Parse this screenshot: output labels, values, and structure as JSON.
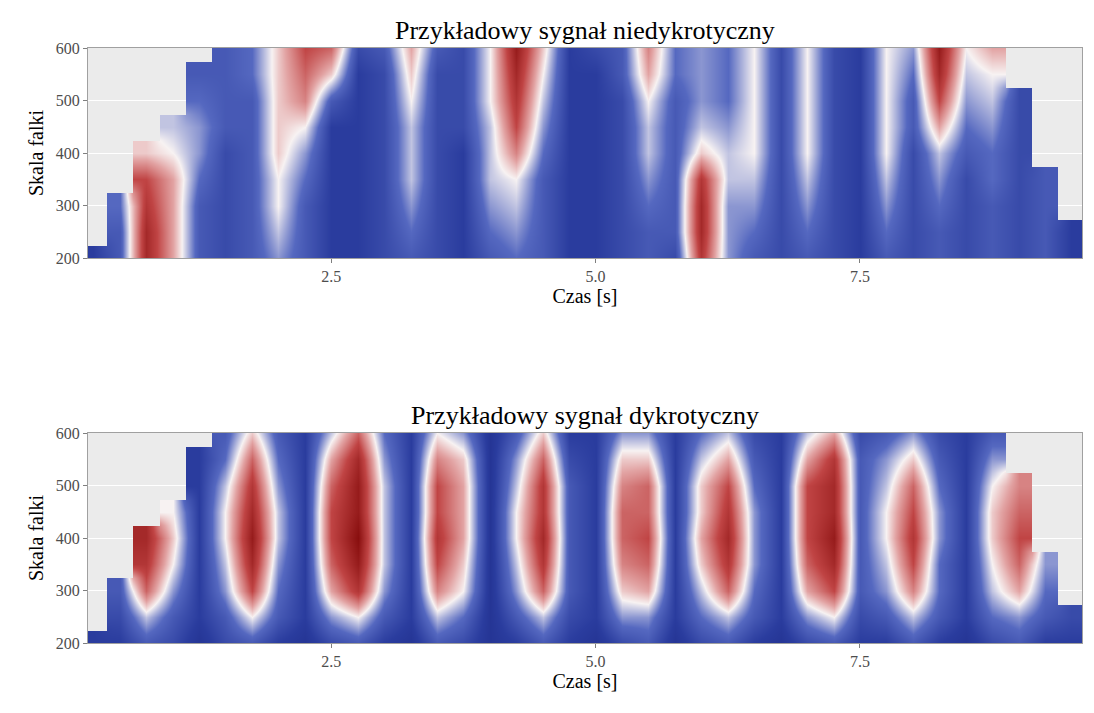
{
  "chart_data": [
    {
      "type": "heatmap",
      "title": "Przykładowy sygnał niedykrotyczny",
      "x_label": "Czas [s]",
      "y_label": "Skala falki",
      "x": [
        0.25,
        0.5,
        0.75,
        1.0,
        1.25,
        1.5,
        1.75,
        2.0,
        2.25,
        2.5,
        2.75,
        3.0,
        3.25,
        3.5,
        3.75,
        4.0,
        4.25,
        4.5,
        4.75,
        5.0,
        5.25,
        5.5,
        5.75,
        6.0,
        6.25,
        6.5,
        6.75,
        7.0,
        7.25,
        7.5,
        7.75,
        8.0,
        8.25,
        8.5,
        8.75,
        9.0,
        9.25,
        9.5
      ],
      "y": [
        200,
        250,
        300,
        350,
        400,
        450,
        500,
        550,
        600
      ],
      "z": [
        [
          0.2,
          0.3,
          0.85,
          0.6,
          0.3,
          0.25,
          0.3,
          0.4,
          0.3,
          0.2,
          0.2,
          0.25,
          0.3,
          0.25,
          0.2,
          0.3,
          0.35,
          0.3,
          0.2,
          0.2,
          0.25,
          0.3,
          0.25,
          0.8,
          0.4,
          0.3,
          0.25,
          0.3,
          0.25,
          0.2,
          0.3,
          0.25,
          0.3,
          0.25,
          0.3,
          0.25,
          0.3,
          0.2
        ],
        [
          null,
          0.3,
          0.85,
          0.6,
          0.3,
          0.25,
          0.3,
          0.45,
          0.3,
          0.2,
          0.2,
          0.25,
          0.35,
          0.25,
          0.2,
          0.35,
          0.4,
          0.3,
          0.2,
          0.2,
          0.25,
          0.3,
          0.3,
          0.85,
          0.4,
          0.35,
          0.25,
          0.35,
          0.25,
          0.2,
          0.35,
          0.25,
          0.3,
          0.25,
          0.3,
          0.25,
          0.3,
          0.2
        ],
        [
          null,
          0.35,
          0.8,
          0.6,
          0.3,
          0.25,
          0.3,
          0.5,
          0.3,
          0.2,
          0.2,
          0.25,
          0.4,
          0.25,
          0.2,
          0.4,
          0.45,
          0.3,
          0.2,
          0.2,
          0.25,
          0.35,
          0.3,
          0.85,
          0.4,
          0.4,
          0.25,
          0.4,
          0.25,
          0.2,
          0.4,
          0.25,
          0.35,
          0.25,
          0.3,
          0.25,
          0.3,
          null
        ],
        [
          null,
          null,
          0.75,
          0.6,
          0.35,
          0.25,
          0.3,
          0.5,
          0.35,
          0.2,
          0.2,
          0.25,
          0.45,
          0.25,
          0.2,
          0.45,
          0.5,
          0.3,
          0.2,
          0.2,
          0.25,
          0.4,
          0.3,
          0.8,
          0.45,
          0.45,
          0.25,
          0.45,
          0.25,
          0.2,
          0.45,
          0.25,
          0.4,
          0.25,
          0.35,
          0.25,
          0.3,
          null
        ],
        [
          null,
          null,
          0.55,
          0.5,
          0.4,
          0.25,
          0.3,
          0.55,
          0.4,
          0.2,
          0.2,
          0.25,
          0.45,
          0.25,
          0.2,
          0.45,
          0.65,
          0.35,
          0.2,
          0.2,
          0.25,
          0.45,
          0.3,
          0.55,
          0.45,
          0.5,
          0.25,
          0.5,
          0.25,
          0.2,
          0.5,
          0.25,
          0.45,
          0.3,
          0.35,
          0.25,
          null,
          null
        ],
        [
          null,
          null,
          null,
          0.45,
          0.4,
          0.3,
          0.3,
          0.55,
          0.5,
          0.2,
          0.2,
          0.25,
          0.45,
          0.25,
          0.25,
          0.45,
          0.75,
          0.4,
          0.2,
          0.2,
          0.25,
          0.45,
          0.3,
          0.45,
          0.4,
          0.5,
          0.25,
          0.5,
          0.25,
          0.2,
          0.5,
          0.3,
          0.6,
          0.35,
          0.4,
          0.25,
          null,
          null
        ],
        [
          null,
          null,
          null,
          null,
          0.35,
          0.3,
          0.3,
          0.55,
          0.65,
          0.3,
          0.2,
          0.25,
          0.5,
          0.25,
          0.25,
          0.5,
          0.8,
          0.45,
          0.2,
          0.2,
          0.25,
          0.5,
          0.3,
          0.4,
          0.35,
          0.5,
          0.25,
          0.5,
          0.25,
          0.2,
          0.5,
          0.3,
          0.75,
          0.4,
          0.45,
          0.25,
          null,
          null
        ],
        [
          null,
          null,
          null,
          null,
          0.3,
          0.3,
          0.35,
          0.55,
          0.7,
          0.55,
          0.2,
          0.25,
          0.55,
          0.25,
          0.25,
          0.5,
          0.85,
          0.5,
          0.2,
          0.2,
          0.3,
          0.6,
          0.35,
          0.4,
          0.35,
          0.5,
          0.25,
          0.5,
          0.25,
          0.2,
          0.5,
          0.35,
          0.85,
          0.45,
          0.5,
          null,
          null,
          null
        ],
        [
          null,
          null,
          null,
          null,
          null,
          0.3,
          0.35,
          0.55,
          0.75,
          0.7,
          0.25,
          0.3,
          0.6,
          0.3,
          0.25,
          0.5,
          0.9,
          0.55,
          0.2,
          0.25,
          0.3,
          0.65,
          0.35,
          0.4,
          0.35,
          0.5,
          0.25,
          0.5,
          0.25,
          0.2,
          0.5,
          0.4,
          0.9,
          0.5,
          0.6,
          null,
          null,
          null
        ]
      ],
      "zlim": [
        0,
        1
      ],
      "xlim": [
        0.2,
        9.6
      ],
      "xticks": [
        2.5,
        {
          "value": 5,
          "label": "5.0"
        },
        7.5
      ],
      "ylim": [
        200,
        600
      ],
      "yticks": [
        200,
        300,
        400,
        500,
        600
      ],
      "grid": true
    },
    {
      "type": "heatmap",
      "title": "Przykładowy sygnał dykrotyczny",
      "x_label": "Czas [s]",
      "y_label": "Skala falki",
      "x": [
        0.25,
        0.5,
        0.75,
        1.0,
        1.25,
        1.5,
        1.75,
        2.0,
        2.25,
        2.5,
        2.75,
        3.0,
        3.25,
        3.5,
        3.75,
        4.0,
        4.25,
        4.5,
        4.75,
        5.0,
        5.25,
        5.5,
        5.75,
        6.0,
        6.25,
        6.5,
        6.75,
        7.0,
        7.25,
        7.5,
        7.75,
        8.0,
        8.25,
        8.5,
        8.75,
        9.0,
        9.25,
        9.5
      ],
      "y": [
        200,
        250,
        300,
        350,
        400,
        450,
        500,
        550,
        600
      ],
      "z": [
        [
          0.2,
          0.2,
          0.3,
          0.25,
          0.15,
          0.25,
          0.3,
          0.2,
          0.15,
          0.25,
          0.3,
          0.2,
          0.15,
          0.3,
          0.25,
          0.15,
          0.2,
          0.3,
          0.2,
          0.15,
          0.25,
          0.3,
          0.15,
          0.25,
          0.3,
          0.2,
          0.15,
          0.25,
          0.3,
          0.2,
          0.2,
          0.3,
          0.2,
          0.15,
          0.25,
          0.3,
          0.2,
          0.2
        ],
        [
          null,
          0.25,
          0.45,
          0.3,
          0.2,
          0.3,
          0.5,
          0.3,
          0.2,
          0.4,
          0.5,
          0.3,
          0.2,
          0.45,
          0.35,
          0.15,
          0.3,
          0.45,
          0.25,
          0.2,
          0.4,
          0.4,
          0.2,
          0.35,
          0.45,
          0.3,
          0.2,
          0.4,
          0.5,
          0.25,
          0.3,
          0.45,
          0.3,
          0.2,
          0.35,
          0.4,
          0.3,
          0.25
        ],
        [
          null,
          0.3,
          0.7,
          0.4,
          0.2,
          0.4,
          0.75,
          0.35,
          0.2,
          0.6,
          0.8,
          0.4,
          0.2,
          0.65,
          0.5,
          0.15,
          0.4,
          0.7,
          0.3,
          0.2,
          0.55,
          0.6,
          0.2,
          0.45,
          0.7,
          0.35,
          0.2,
          0.6,
          0.75,
          0.3,
          0.4,
          0.65,
          0.35,
          0.2,
          0.45,
          0.6,
          0.35,
          null
        ],
        [
          null,
          null,
          0.8,
          0.5,
          0.2,
          0.45,
          0.85,
          0.4,
          0.2,
          0.7,
          0.9,
          0.45,
          0.2,
          0.75,
          0.55,
          0.15,
          0.45,
          0.8,
          0.3,
          0.2,
          0.65,
          0.7,
          0.2,
          0.55,
          0.8,
          0.4,
          0.2,
          0.7,
          0.85,
          0.3,
          0.45,
          0.75,
          0.35,
          0.2,
          0.5,
          0.7,
          0.4,
          null
        ],
        [
          null,
          null,
          0.85,
          0.55,
          0.2,
          0.5,
          0.9,
          0.45,
          0.2,
          0.75,
          0.95,
          0.45,
          0.2,
          0.8,
          0.6,
          0.15,
          0.5,
          0.85,
          0.3,
          0.2,
          0.7,
          0.75,
          0.2,
          0.6,
          0.85,
          0.4,
          0.2,
          0.75,
          0.9,
          0.3,
          0.5,
          0.8,
          0.4,
          0.2,
          0.55,
          0.75,
          null,
          null
        ],
        [
          null,
          null,
          null,
          0.5,
          0.2,
          0.5,
          0.85,
          0.45,
          0.2,
          0.75,
          0.9,
          0.45,
          0.2,
          0.75,
          0.6,
          0.15,
          0.5,
          0.8,
          0.3,
          0.2,
          0.7,
          0.7,
          0.2,
          0.55,
          0.8,
          0.4,
          0.2,
          0.75,
          0.85,
          0.3,
          0.5,
          0.75,
          0.4,
          0.2,
          0.55,
          0.7,
          null,
          null
        ],
        [
          null,
          null,
          null,
          null,
          0.2,
          0.45,
          0.8,
          0.4,
          0.2,
          0.7,
          0.9,
          0.45,
          0.2,
          0.75,
          0.6,
          0.15,
          0.45,
          0.8,
          0.3,
          0.2,
          0.65,
          0.7,
          0.2,
          0.55,
          0.75,
          0.35,
          0.2,
          0.75,
          0.85,
          0.3,
          0.45,
          0.7,
          0.35,
          0.2,
          0.5,
          0.65,
          null,
          null
        ],
        [
          null,
          null,
          null,
          null,
          0.2,
          0.35,
          0.7,
          0.35,
          0.2,
          0.6,
          0.85,
          0.4,
          0.2,
          0.65,
          0.55,
          0.15,
          0.4,
          0.7,
          0.25,
          0.2,
          0.55,
          0.55,
          0.2,
          0.45,
          0.6,
          0.3,
          0.2,
          0.6,
          0.8,
          0.3,
          0.4,
          0.55,
          0.3,
          0.2,
          0.4,
          null,
          null,
          null
        ],
        [
          null,
          null,
          null,
          null,
          null,
          0.3,
          0.55,
          0.3,
          0.2,
          0.45,
          0.7,
          0.35,
          0.2,
          0.5,
          0.4,
          0.15,
          0.3,
          0.55,
          0.2,
          0.2,
          0.4,
          0.4,
          0.2,
          0.35,
          0.45,
          0.25,
          0.2,
          0.45,
          0.6,
          0.25,
          0.3,
          0.4,
          0.25,
          0.2,
          0.3,
          null,
          null,
          null
        ]
      ],
      "zlim": [
        0,
        1
      ],
      "xlim": [
        0.2,
        9.6
      ],
      "xticks": [
        2.5,
        {
          "value": 5,
          "label": "5.0"
        },
        7.5
      ],
      "ylim": [
        200,
        600
      ],
      "yticks": [
        200,
        300,
        400,
        500,
        600
      ],
      "grid": true
    }
  ]
}
